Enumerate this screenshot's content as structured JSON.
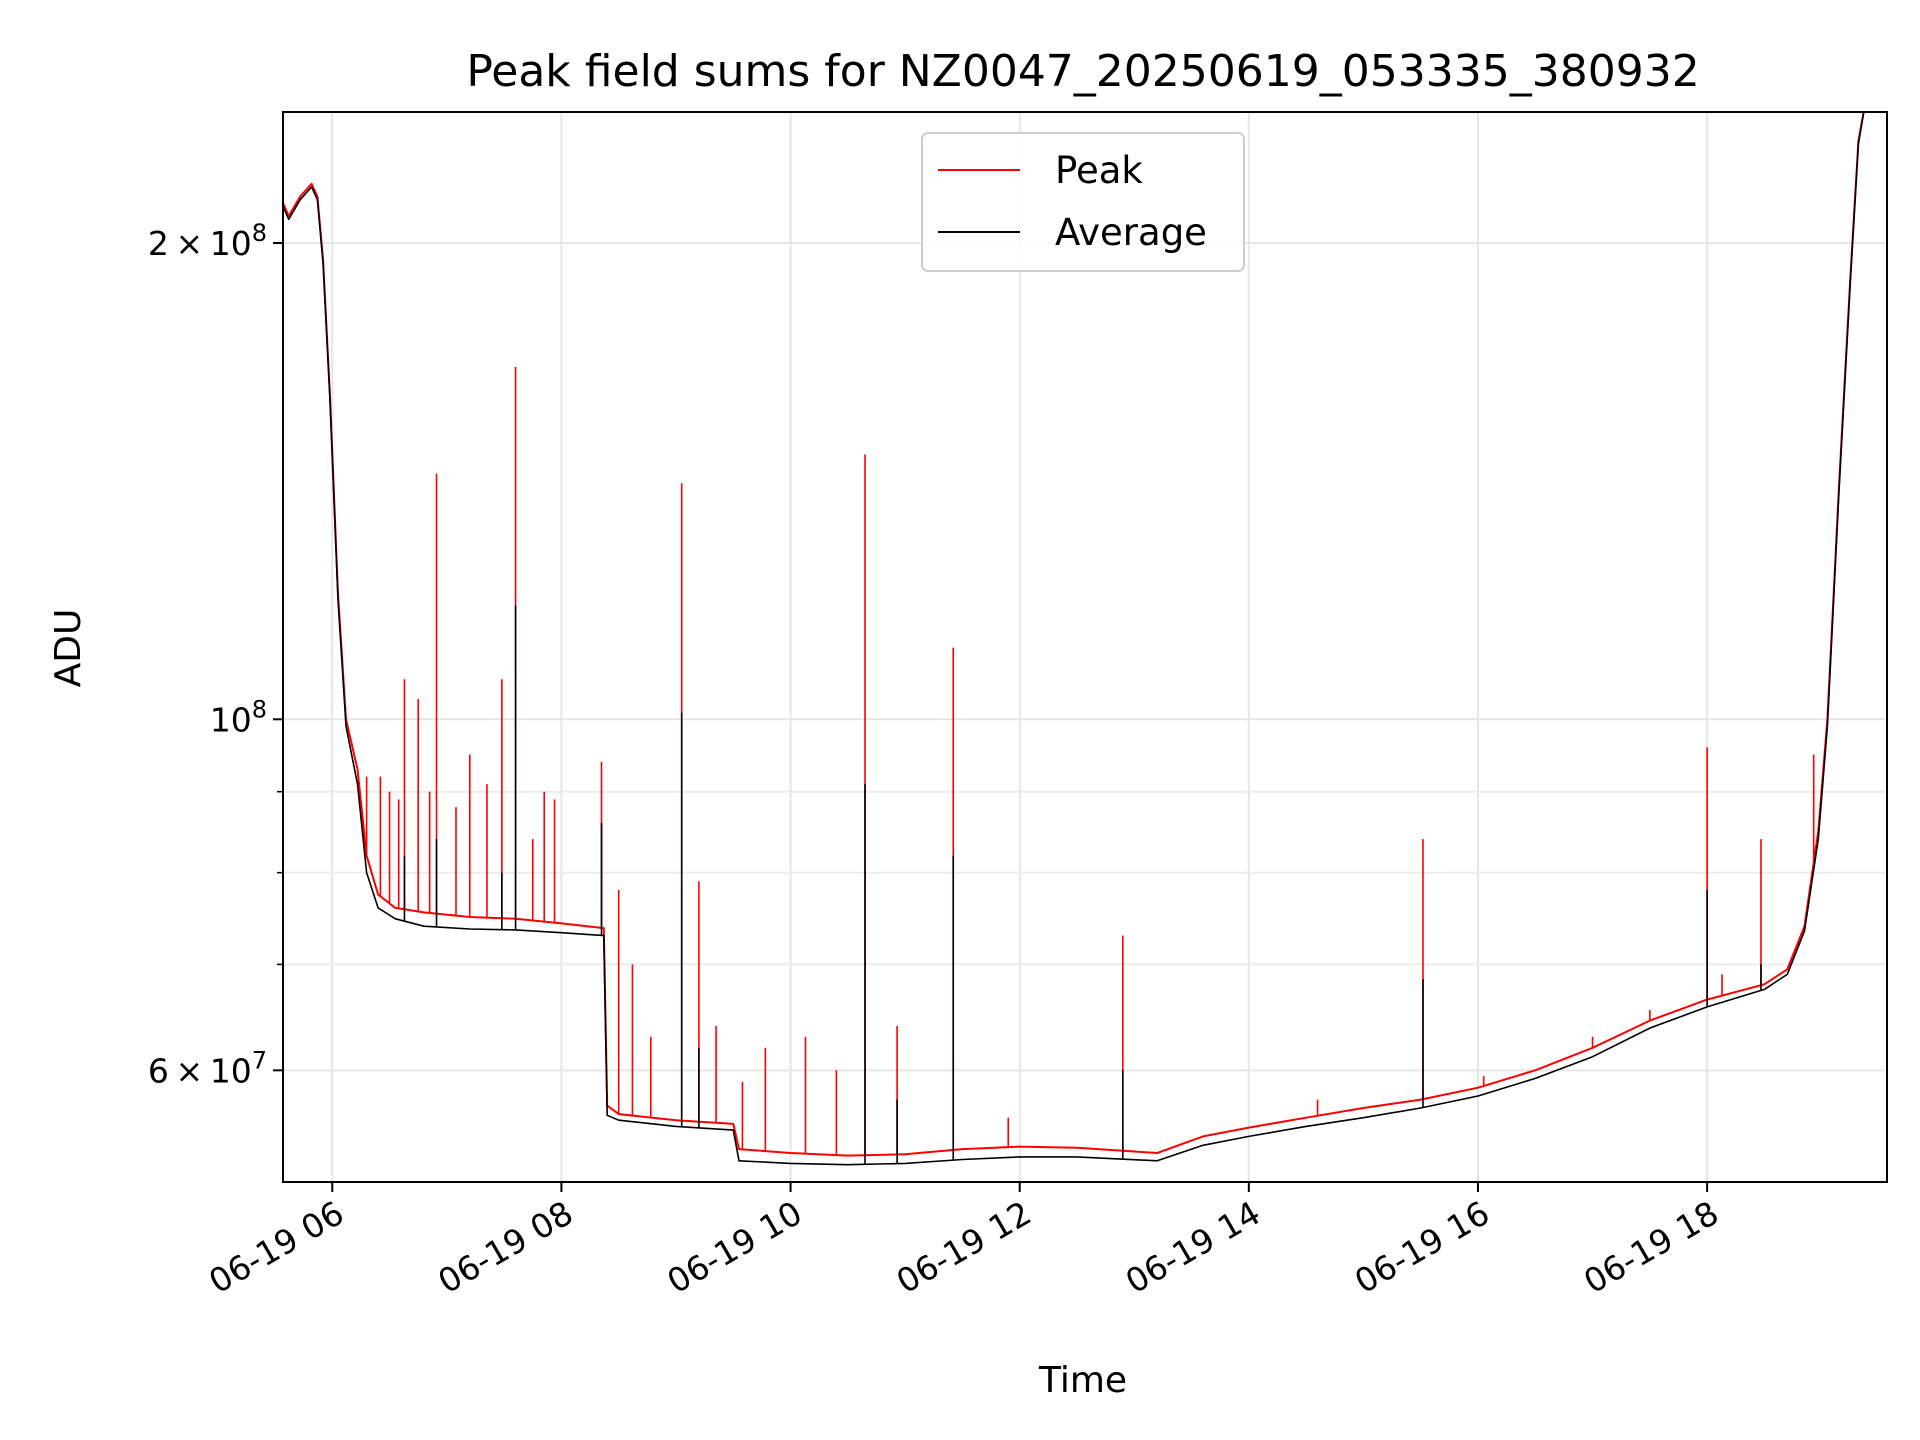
{
  "chart_data": {
    "type": "line",
    "title": "Peak field sums for NZ0047_20250619_053335_380932",
    "xlabel": "Time",
    "ylabel": "ADU",
    "y_scale": "log",
    "grid": true,
    "legend_position": "top-center",
    "x_unit": "hours on 2025-06-19",
    "xlim": [
      5.57,
      19.57
    ],
    "ylim": [
      51000000,
      242000000
    ],
    "x_ticks": [
      {
        "value": 6,
        "label": "06-19 06"
      },
      {
        "value": 8,
        "label": "06-19 08"
      },
      {
        "value": 10,
        "label": "06-19 10"
      },
      {
        "value": 12,
        "label": "06-19 12"
      },
      {
        "value": 14,
        "label": "06-19 14"
      },
      {
        "value": 16,
        "label": "06-19 16"
      },
      {
        "value": 18,
        "label": "06-19 18"
      }
    ],
    "y_ticks": [
      {
        "value": 60000000,
        "mantissa": "6",
        "exp": "7"
      },
      {
        "value": 100000000,
        "mantissa": "",
        "exp": "8"
      },
      {
        "value": 200000000,
        "mantissa": "2",
        "exp": "8"
      }
    ],
    "y_minor_ticks": [
      70000000,
      80000000,
      90000000
    ],
    "series": [
      {
        "name": "Peak",
        "color": "#ff0000",
        "baseline": [
          [
            5.57,
            212000000
          ],
          [
            5.62,
            208000000
          ],
          [
            5.72,
            214000000
          ],
          [
            5.82,
            218000000
          ],
          [
            5.87,
            214000000
          ],
          [
            5.92,
            195000000
          ],
          [
            5.98,
            160000000
          ],
          [
            6.05,
            120000000
          ],
          [
            6.12,
            100000000
          ],
          [
            6.22,
            93000000
          ],
          [
            6.3,
            82000000
          ],
          [
            6.4,
            77500000
          ],
          [
            6.55,
            76000000
          ],
          [
            6.8,
            75500000
          ],
          [
            7.2,
            75000000
          ],
          [
            7.6,
            74800000
          ],
          [
            8.0,
            74300000
          ],
          [
            8.37,
            73800000
          ],
          [
            8.4,
            57000000
          ],
          [
            8.5,
            56300000
          ],
          [
            9.0,
            55800000
          ],
          [
            9.5,
            55500000
          ],
          [
            9.55,
            53500000
          ],
          [
            10.0,
            53200000
          ],
          [
            10.5,
            53000000
          ],
          [
            11.0,
            53100000
          ],
          [
            11.5,
            53500000
          ],
          [
            12.0,
            53700000
          ],
          [
            12.5,
            53600000
          ],
          [
            13.2,
            53200000
          ],
          [
            13.6,
            54500000
          ],
          [
            14.0,
            55200000
          ],
          [
            14.5,
            56000000
          ],
          [
            15.0,
            56800000
          ],
          [
            15.5,
            57500000
          ],
          [
            16.0,
            58500000
          ],
          [
            16.5,
            60000000
          ],
          [
            17.0,
            62000000
          ],
          [
            17.5,
            64500000
          ],
          [
            18.0,
            66500000
          ],
          [
            18.5,
            68000000
          ],
          [
            18.7,
            69500000
          ],
          [
            18.85,
            74000000
          ],
          [
            18.97,
            85000000
          ],
          [
            19.05,
            100000000
          ],
          [
            19.15,
            140000000
          ],
          [
            19.25,
            190000000
          ],
          [
            19.32,
            232000000
          ],
          [
            19.38,
            245000000
          ]
        ],
        "spikes": [
          [
            6.3,
            92000000
          ],
          [
            6.42,
            92000000
          ],
          [
            6.5,
            90000000
          ],
          [
            6.58,
            89000000
          ],
          [
            6.63,
            106000000
          ],
          [
            6.75,
            103000000
          ],
          [
            6.85,
            90000000
          ],
          [
            6.91,
            143000000
          ],
          [
            7.08,
            88000000
          ],
          [
            7.2,
            95000000
          ],
          [
            7.35,
            91000000
          ],
          [
            7.48,
            106000000
          ],
          [
            7.6,
            167000000
          ],
          [
            7.75,
            84000000
          ],
          [
            7.85,
            90000000
          ],
          [
            7.94,
            89000000
          ],
          [
            8.35,
            94000000
          ],
          [
            8.5,
            78000000
          ],
          [
            8.62,
            70000000
          ],
          [
            8.78,
            63000000
          ],
          [
            9.05,
            141000000
          ],
          [
            9.2,
            79000000
          ],
          [
            9.35,
            64000000
          ],
          [
            9.58,
            59000000
          ],
          [
            9.78,
            62000000
          ],
          [
            10.13,
            63000000
          ],
          [
            10.4,
            60000000
          ],
          [
            10.65,
            147000000
          ],
          [
            10.93,
            64000000
          ],
          [
            11.42,
            111000000
          ],
          [
            11.9,
            56000000
          ],
          [
            12.9,
            73000000
          ],
          [
            14.6,
            57500000
          ],
          [
            15.52,
            84000000
          ],
          [
            16.05,
            59500000
          ],
          [
            17.0,
            63000000
          ],
          [
            17.5,
            65500000
          ],
          [
            18.0,
            96000000
          ],
          [
            18.13,
            69000000
          ],
          [
            18.47,
            84000000
          ],
          [
            18.93,
            95000000
          ]
        ]
      },
      {
        "name": "Average",
        "color": "#000000",
        "baseline": [
          [
            5.57,
            211000000
          ],
          [
            5.62,
            207000000
          ],
          [
            5.72,
            213000000
          ],
          [
            5.82,
            217000000
          ],
          [
            5.87,
            213000000
          ],
          [
            5.92,
            194000000
          ],
          [
            5.98,
            159000000
          ],
          [
            6.05,
            119000000
          ],
          [
            6.12,
            99000000
          ],
          [
            6.22,
            91000000
          ],
          [
            6.3,
            80000000
          ],
          [
            6.4,
            76000000
          ],
          [
            6.55,
            74800000
          ],
          [
            6.8,
            74000000
          ],
          [
            7.2,
            73700000
          ],
          [
            7.6,
            73600000
          ],
          [
            8.0,
            73300000
          ],
          [
            8.37,
            73000000
          ],
          [
            8.4,
            56200000
          ],
          [
            8.5,
            55800000
          ],
          [
            9.0,
            55300000
          ],
          [
            9.5,
            55000000
          ],
          [
            9.55,
            52600000
          ],
          [
            10.0,
            52400000
          ],
          [
            10.5,
            52300000
          ],
          [
            11.0,
            52400000
          ],
          [
            11.5,
            52700000
          ],
          [
            12.0,
            52900000
          ],
          [
            12.5,
            52900000
          ],
          [
            13.2,
            52600000
          ],
          [
            13.6,
            53800000
          ],
          [
            14.0,
            54500000
          ],
          [
            14.5,
            55300000
          ],
          [
            15.0,
            56000000
          ],
          [
            15.5,
            56800000
          ],
          [
            16.0,
            57800000
          ],
          [
            16.5,
            59300000
          ],
          [
            17.0,
            61200000
          ],
          [
            17.5,
            63800000
          ],
          [
            18.0,
            65800000
          ],
          [
            18.5,
            67500000
          ],
          [
            18.7,
            69000000
          ],
          [
            18.85,
            73500000
          ],
          [
            18.97,
            84000000
          ],
          [
            19.05,
            99000000
          ],
          [
            19.15,
            139000000
          ],
          [
            19.25,
            189000000
          ],
          [
            19.32,
            231000000
          ],
          [
            19.38,
            245000000
          ]
        ],
        "spikes": [
          [
            6.63,
            82000000
          ],
          [
            6.91,
            84000000
          ],
          [
            7.48,
            80000000
          ],
          [
            7.6,
            118000000
          ],
          [
            8.35,
            86000000
          ],
          [
            9.05,
            101000000
          ],
          [
            9.2,
            62000000
          ],
          [
            10.65,
            91000000
          ],
          [
            10.93,
            57500000
          ],
          [
            11.42,
            82000000
          ],
          [
            12.9,
            60000000
          ],
          [
            15.52,
            68500000
          ],
          [
            18.0,
            78000000
          ],
          [
            18.47,
            70000000
          ]
        ]
      }
    ]
  }
}
